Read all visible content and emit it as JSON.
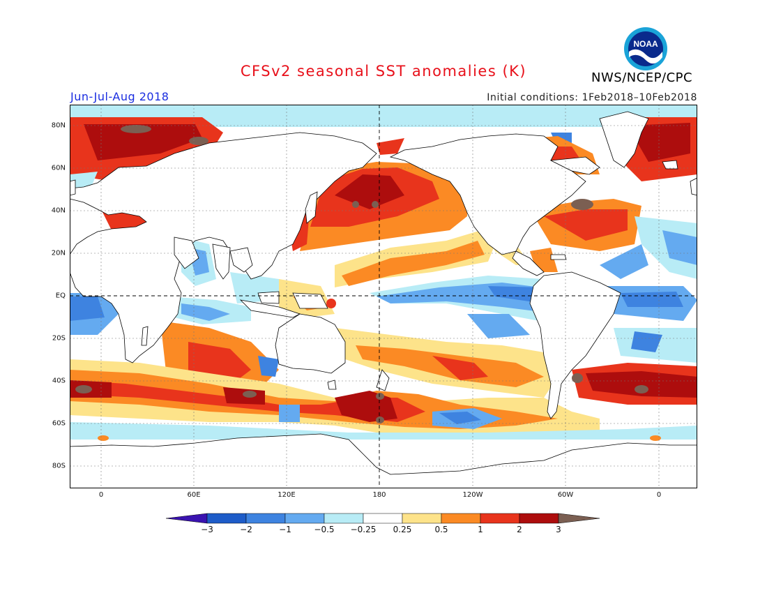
{
  "title": "CFSv2 seasonal SST anomalies (K)",
  "season": "Jun-Jul-Aug 2018",
  "initial_conditions": "Initial conditions: 1Feb2018–10Feb2018",
  "agency": "NWS/NCEP/CPC",
  "logo_text": "NOAA",
  "logo_icon": "noaa-logo-icon",
  "map": {
    "latitude_labels": [
      "80N",
      "60N",
      "40N",
      "20N",
      "EQ",
      "20S",
      "40S",
      "60S",
      "80S"
    ],
    "longitude_labels": [
      "0",
      "60E",
      "120E",
      "180",
      "120W",
      "60W",
      "0"
    ],
    "colors": {
      "land": "#ffffff",
      "coast": "#000000",
      "grid": "#777777"
    }
  },
  "colorbar": {
    "tick_labels": [
      "−3",
      "−2",
      "−1",
      "−0.5",
      "−0.25",
      "0.25",
      "0.5",
      "1",
      "2",
      "3"
    ],
    "colors": [
      "#3a13b0",
      "#1e5cc8",
      "#3e83e0",
      "#64aaf0",
      "#b8ecf6",
      "#ffffff",
      "#fde38a",
      "#fb8a24",
      "#e8341c",
      "#ad0d0d",
      "#7b5f52"
    ]
  }
}
